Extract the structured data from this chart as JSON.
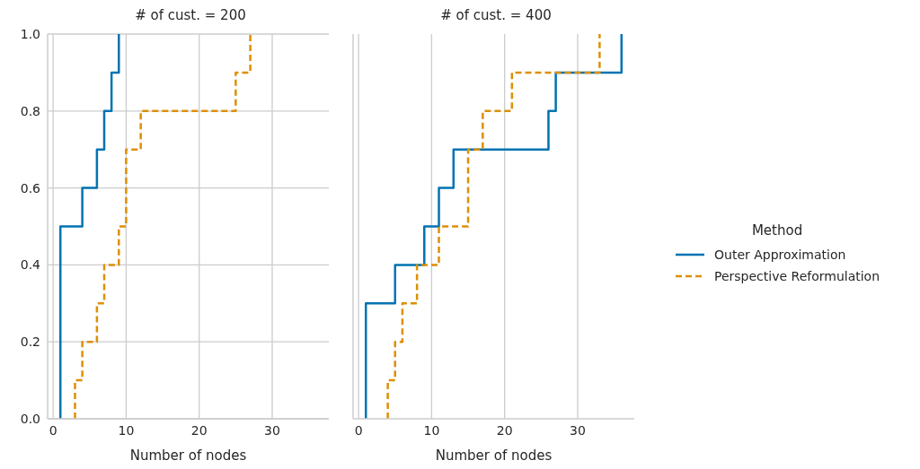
{
  "chart_data": [
    {
      "type": "step",
      "title": "# of cust. = 200",
      "xlabel": "Number of nodes",
      "xlim": [
        -0.75,
        37.75
      ],
      "xticks": [
        0,
        10,
        20,
        30
      ],
      "ylim": [
        0,
        1
      ],
      "yticks": [
        {
          "value": 0,
          "label": "0.0"
        },
        0.2,
        0.4,
        0.6,
        0.8,
        {
          "value": 1,
          "label": "1.0"
        }
      ],
      "grid": true,
      "series": [
        {
          "color": "#0173b2",
          "line_style": "solid",
          "x": [
            1,
            1,
            4,
            6,
            7,
            8,
            9
          ],
          "values": [
            0.0,
            0.5,
            0.6,
            0.7,
            0.8,
            0.9,
            1.0
          ]
        },
        {
          "color": "#de8f05",
          "line_style": "dashed",
          "x": [
            3,
            3,
            4,
            6,
            7,
            9,
            10,
            12,
            25,
            27
          ],
          "values": [
            0.0,
            0.1,
            0.2,
            0.3,
            0.4,
            0.5,
            0.7,
            0.8,
            0.9,
            1.0
          ]
        }
      ]
    },
    {
      "type": "step",
      "title": "# of cust. = 400",
      "xlabel": "Number of nodes",
      "xlim": [
        -0.75,
        37.75
      ],
      "xticks": [
        0,
        10,
        20,
        30
      ],
      "ylim": [
        0,
        1
      ],
      "yticks": [
        0,
        0.2,
        0.4,
        0.6,
        0.8,
        1
      ],
      "grid": true,
      "tick_labels": "x",
      "legend": "right",
      "legend_title": "Method",
      "series": [
        {
          "name": "Outer Approximation",
          "color": "#0173b2",
          "line_style": "solid",
          "x": [
            1,
            1,
            5,
            9,
            11,
            13,
            26,
            27,
            36
          ],
          "values": [
            0.0,
            0.3,
            0.4,
            0.5,
            0.6,
            0.7,
            0.8,
            0.9,
            1.0
          ]
        },
        {
          "name": "Perspective Reformulation",
          "color": "#de8f05",
          "line_style": "dashed",
          "x": [
            4,
            4,
            5,
            6,
            8,
            11,
            15,
            17,
            21,
            33
          ],
          "values": [
            0.0,
            0.1,
            0.2,
            0.3,
            0.4,
            0.5,
            0.7,
            0.8,
            0.9,
            1.0
          ]
        }
      ]
    }
  ]
}
